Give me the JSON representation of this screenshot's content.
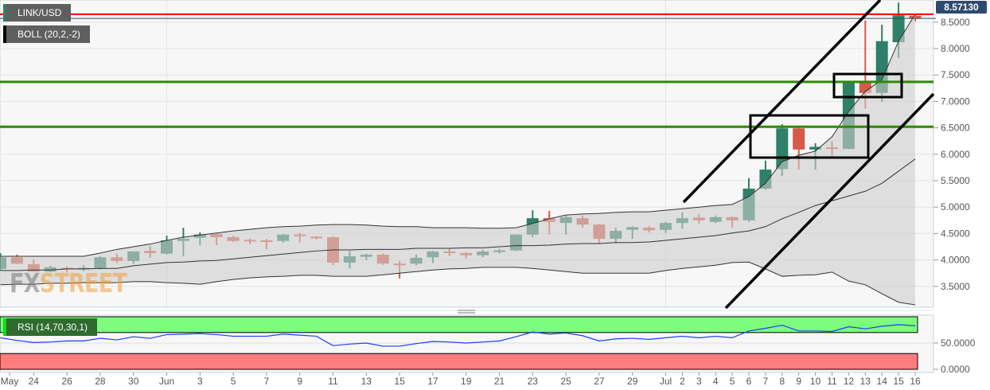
{
  "header": {
    "symbol_label": "LINK/USD",
    "indicator_label": "BOLL (20,2,-2)",
    "rsi_label": "RSI (14,70,30,1)",
    "current_price": "8.57130"
  },
  "watermark": {
    "part1": "FX",
    "part2": "STREET"
  },
  "colors": {
    "up": "#2e8069",
    "down": "#d65a48",
    "band": "#cfcfcf",
    "support": "#2e8b00",
    "resistance_red": "#ff0000",
    "rsi_line": "#1a3cff",
    "overbought_zone": "#7dfc7d",
    "oversold_zone": "#fc7d7d",
    "price_tag": "#2e4a6e"
  },
  "chart_data": [
    {
      "type": "candlestick",
      "title": "LINK/USD",
      "grid": true,
      "y_axis": {
        "position": "right",
        "ylim": [
          3.1,
          8.9
        ],
        "ticks": [
          "3.5000",
          "4.0000",
          "4.5000",
          "5.0000",
          "5.5000",
          "6.0000",
          "6.5000",
          "7.0000",
          "7.5000",
          "8.0000",
          "8.5000"
        ]
      },
      "x_axis_labels": [
        {
          "i": 0.55,
          "text": "May"
        },
        {
          "i": 2,
          "text": "24"
        },
        {
          "i": 4,
          "text": "26"
        },
        {
          "i": 6,
          "text": "28"
        },
        {
          "i": 8,
          "text": "30"
        },
        {
          "i": 10,
          "text": "Jun"
        },
        {
          "i": 12,
          "text": "3"
        },
        {
          "i": 14,
          "text": "5"
        },
        {
          "i": 16,
          "text": "7"
        },
        {
          "i": 18,
          "text": "9"
        },
        {
          "i": 20,
          "text": "11"
        },
        {
          "i": 22,
          "text": "13"
        },
        {
          "i": 24,
          "text": "15"
        },
        {
          "i": 26,
          "text": "17"
        },
        {
          "i": 28,
          "text": "19"
        },
        {
          "i": 30,
          "text": "21"
        },
        {
          "i": 32,
          "text": "23"
        },
        {
          "i": 34,
          "text": "25"
        },
        {
          "i": 36,
          "text": "27"
        },
        {
          "i": 38,
          "text": "29"
        },
        {
          "i": 40,
          "text": "Jul"
        },
        {
          "i": 41,
          "text": "2"
        },
        {
          "i": 42,
          "text": "3"
        },
        {
          "i": 43,
          "text": "4"
        },
        {
          "i": 44,
          "text": "5"
        },
        {
          "i": 45,
          "text": "6"
        },
        {
          "i": 46,
          "text": "7"
        },
        {
          "i": 47,
          "text": "8"
        },
        {
          "i": 48,
          "text": "9"
        },
        {
          "i": 49,
          "text": "10"
        },
        {
          "i": 50,
          "text": "11"
        },
        {
          "i": 51,
          "text": "12"
        },
        {
          "i": 52,
          "text": "13"
        },
        {
          "i": 53,
          "text": "14"
        },
        {
          "i": 54,
          "text": "15"
        },
        {
          "i": 55,
          "text": "16"
        }
      ],
      "ohlc": [
        [
          3.83,
          4.13,
          3.8,
          4.05
        ],
        [
          4.05,
          4.1,
          3.92,
          3.93
        ],
        [
          3.92,
          4.01,
          3.78,
          3.78
        ],
        [
          3.78,
          3.89,
          3.77,
          3.86
        ],
        [
          3.85,
          3.88,
          3.77,
          3.83
        ],
        [
          3.83,
          3.9,
          3.79,
          3.85
        ],
        [
          3.84,
          4.07,
          3.82,
          4.05
        ],
        [
          4.05,
          4.12,
          3.94,
          3.98
        ],
        [
          3.98,
          4.16,
          3.93,
          4.16
        ],
        [
          4.17,
          4.27,
          4.04,
          4.13
        ],
        [
          4.12,
          4.46,
          4.1,
          4.37
        ],
        [
          4.36,
          4.61,
          4.07,
          4.4
        ],
        [
          4.42,
          4.52,
          4.28,
          4.48
        ],
        [
          4.49,
          4.5,
          4.28,
          4.43
        ],
        [
          4.43,
          4.46,
          4.34,
          4.36
        ],
        [
          4.38,
          4.4,
          4.3,
          4.36
        ],
        [
          4.37,
          4.4,
          4.2,
          4.36
        ],
        [
          4.36,
          4.49,
          4.33,
          4.48
        ],
        [
          4.48,
          4.51,
          4.33,
          4.46
        ],
        [
          4.44,
          4.45,
          4.39,
          4.43
        ],
        [
          4.43,
          4.45,
          3.9,
          3.95
        ],
        [
          3.95,
          4.17,
          3.84,
          4.07
        ],
        [
          4.06,
          4.12,
          4.0,
          4.1
        ],
        [
          4.1,
          4.12,
          3.91,
          3.93
        ],
        [
          3.93,
          3.98,
          3.65,
          3.92
        ],
        [
          3.93,
          4.1,
          3.9,
          4.04
        ],
        [
          4.05,
          4.17,
          3.94,
          4.16
        ],
        [
          4.16,
          4.22,
          4.07,
          4.14
        ],
        [
          4.13,
          4.15,
          4.03,
          4.09
        ],
        [
          4.09,
          4.19,
          4.05,
          4.16
        ],
        [
          4.17,
          4.21,
          4.12,
          4.18
        ],
        [
          4.18,
          4.48,
          4.17,
          4.48
        ],
        [
          4.48,
          4.94,
          4.43,
          4.79
        ],
        [
          4.79,
          4.93,
          4.48,
          4.72
        ],
        [
          4.7,
          4.84,
          4.48,
          4.81
        ],
        [
          4.79,
          4.84,
          4.61,
          4.67
        ],
        [
          4.67,
          4.68,
          4.3,
          4.4
        ],
        [
          4.4,
          4.61,
          4.31,
          4.55
        ],
        [
          4.57,
          4.64,
          4.4,
          4.62
        ],
        [
          4.61,
          4.64,
          4.52,
          4.56
        ],
        [
          4.57,
          4.72,
          4.51,
          4.7
        ],
        [
          4.7,
          4.9,
          4.59,
          4.79
        ],
        [
          4.8,
          4.87,
          4.69,
          4.75
        ],
        [
          4.72,
          4.84,
          4.7,
          4.81
        ],
        [
          4.81,
          4.82,
          4.61,
          4.75
        ],
        [
          4.75,
          5.55,
          4.72,
          5.35
        ],
        [
          5.35,
          5.88,
          5.33,
          5.71
        ],
        [
          5.72,
          6.57,
          5.59,
          6.49
        ],
        [
          6.49,
          6.52,
          5.71,
          6.09
        ],
        [
          6.09,
          6.21,
          5.71,
          6.14
        ],
        [
          6.13,
          6.25,
          5.95,
          6.1
        ],
        [
          6.1,
          7.38,
          6.1,
          7.35
        ],
        [
          7.35,
          8.53,
          6.86,
          7.16
        ],
        [
          7.16,
          8.45,
          6.99,
          8.14
        ],
        [
          8.12,
          8.87,
          7.82,
          8.63
        ],
        [
          8.62,
          8.65,
          8.51,
          8.57
        ]
      ],
      "ohlc_format": [
        "open",
        "high",
        "low",
        "close"
      ],
      "bollinger": {
        "name": "BOLL (20,2,-2)",
        "upper": [
          4.07,
          4.07,
          4.07,
          4.07,
          4.07,
          4.07,
          4.13,
          4.2,
          4.25,
          4.3,
          4.37,
          4.43,
          4.47,
          4.51,
          4.55,
          4.58,
          4.61,
          4.63,
          4.64,
          4.66,
          4.67,
          4.67,
          4.66,
          4.64,
          4.63,
          4.63,
          4.61,
          4.61,
          4.61,
          4.6,
          4.6,
          4.61,
          4.69,
          4.78,
          4.85,
          4.87,
          4.88,
          4.9,
          4.91,
          4.91,
          4.94,
          4.97,
          5.0,
          5.03,
          5.05,
          5.2,
          5.45,
          5.86,
          5.98,
          6.06,
          6.33,
          6.81,
          7.19,
          7.41,
          8.14,
          8.65
        ],
        "middle": [
          3.8,
          3.8,
          3.81,
          3.81,
          3.83,
          3.83,
          3.84,
          3.84,
          3.89,
          3.92,
          3.95,
          3.96,
          3.98,
          3.99,
          4.02,
          4.05,
          4.08,
          4.11,
          4.14,
          4.17,
          4.19,
          4.19,
          4.2,
          4.2,
          4.2,
          4.22,
          4.22,
          4.22,
          4.23,
          4.23,
          4.25,
          4.27,
          4.27,
          4.28,
          4.3,
          4.31,
          4.31,
          4.33,
          4.33,
          4.34,
          4.37,
          4.4,
          4.43,
          4.46,
          4.51,
          4.55,
          4.63,
          4.78,
          4.9,
          5.03,
          5.12,
          5.21,
          5.3,
          5.45,
          5.68,
          5.91
        ],
        "lower": [
          3.53,
          3.54,
          3.54,
          3.56,
          3.56,
          3.57,
          3.57,
          3.57,
          3.59,
          3.59,
          3.57,
          3.56,
          3.54,
          3.59,
          3.63,
          3.66,
          3.68,
          3.69,
          3.71,
          3.71,
          3.69,
          3.69,
          3.69,
          3.72,
          3.75,
          3.78,
          3.81,
          3.83,
          3.84,
          3.86,
          3.86,
          3.86,
          3.84,
          3.81,
          3.78,
          3.75,
          3.75,
          3.75,
          3.75,
          3.75,
          3.8,
          3.84,
          3.87,
          3.9,
          3.95,
          3.96,
          3.83,
          3.69,
          3.71,
          3.72,
          3.77,
          3.6,
          3.53,
          3.36,
          3.2,
          3.15
        ]
      },
      "horizontal_levels": [
        {
          "value": 8.65,
          "color": "#ff0000"
        },
        {
          "value": 7.37,
          "color": "#2e8b00"
        },
        {
          "value": 6.52,
          "color": "#2e8b00"
        }
      ],
      "current_price": 8.5713
    },
    {
      "type": "line",
      "title": "RSI (14,70,30,1)",
      "y_axis": {
        "position": "right",
        "ylim": [
          0,
          100
        ],
        "ticks": [
          "0.0000",
          "50.0000"
        ]
      },
      "zones": {
        "overbought": [
          70,
          100
        ],
        "oversold": [
          0,
          30
        ]
      },
      "values": [
        60,
        55,
        51,
        52,
        54,
        54,
        59,
        56,
        62,
        59,
        66,
        67,
        68,
        66,
        63,
        63,
        63,
        67,
        65,
        63,
        45,
        48,
        50,
        44,
        44,
        49,
        53,
        52,
        50,
        52,
        54,
        62,
        71,
        67,
        69,
        64,
        54,
        58,
        59,
        57,
        60,
        63,
        60,
        63,
        60,
        73,
        78,
        84,
        73,
        73,
        72,
        81,
        77,
        82,
        85,
        83
      ]
    }
  ]
}
